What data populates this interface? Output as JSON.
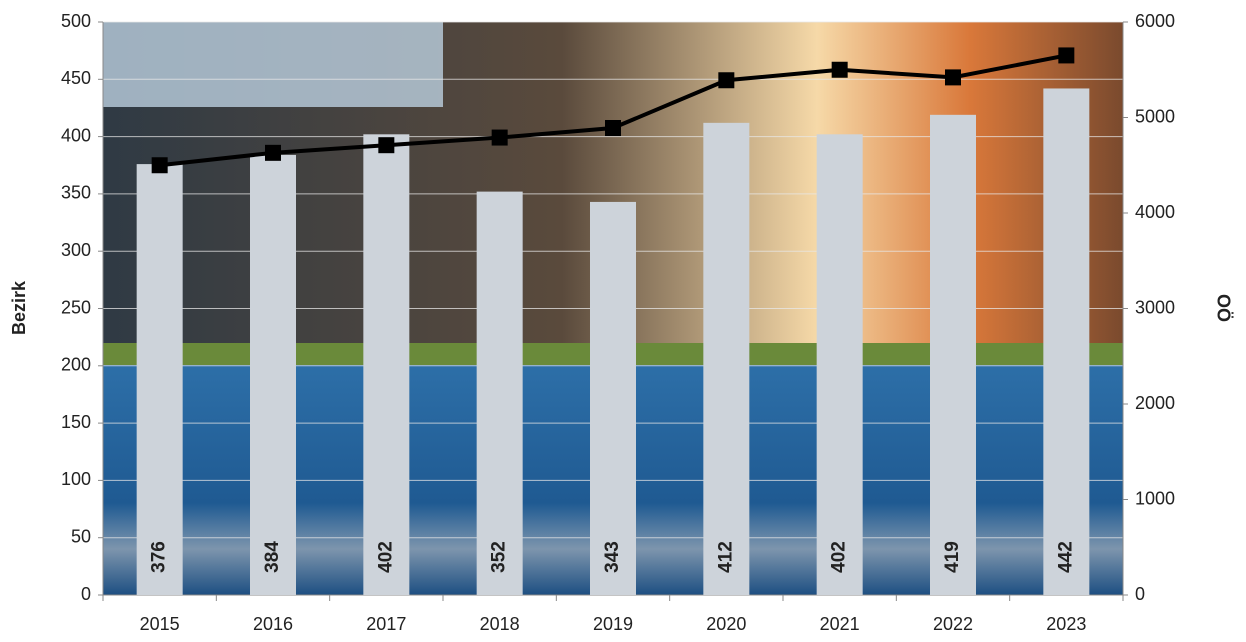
{
  "chart_data": {
    "type": "bar",
    "categories": [
      "2015",
      "2016",
      "2017",
      "2018",
      "2019",
      "2020",
      "2021",
      "2022",
      "2023"
    ],
    "series": [
      {
        "name": "Bezirk",
        "type": "bar",
        "color": "#cdd3da",
        "values": [
          376,
          384,
          402,
          352,
          343,
          412,
          402,
          419,
          442
        ]
      },
      {
        "name": "OÖ",
        "type": "line",
        "axis": "y2",
        "color": "#000000",
        "values": [
          4500,
          4630,
          4710,
          4790,
          4890,
          5390,
          5500,
          5420,
          5650
        ]
      }
    ],
    "ylabel": "Bezirk",
    "y2label": "OÖ",
    "ylim": [
      0,
      500
    ],
    "yticks": [
      0,
      50,
      100,
      150,
      200,
      250,
      300,
      350,
      400,
      450,
      500
    ],
    "y2lim": [
      0,
      6000
    ],
    "y2ticks": [
      0,
      1000,
      2000,
      3000,
      4000,
      5000,
      6000
    ],
    "grid": true
  }
}
